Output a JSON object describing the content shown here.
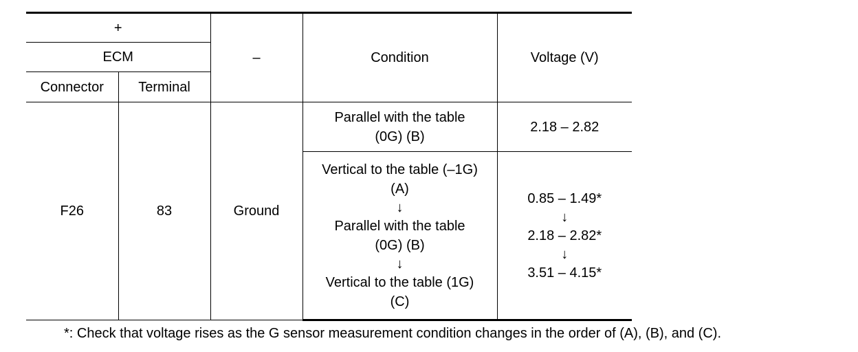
{
  "table": {
    "header": {
      "plus": "+",
      "ecm": "ECM",
      "connector": "Connector",
      "terminal": "Terminal",
      "minus": "–",
      "condition": "Condition",
      "voltage": "Voltage (V)"
    },
    "row": {
      "connector": "F26",
      "terminal": "83",
      "minus": "Ground",
      "condition_1": [
        "Parallel with the table",
        "(0G) (B)"
      ],
      "voltage_1": "2.18 – 2.82",
      "condition_2": [
        "Vertical to the table (–1G)",
        "(A)",
        "↓",
        "Parallel with the table",
        "(0G) (B)",
        "↓",
        "Vertical to the table (1G)",
        "(C)"
      ],
      "voltage_2": [
        "0.85 – 1.49*",
        "↓",
        "2.18 – 2.82*",
        "↓",
        "3.51 – 4.15*"
      ]
    }
  },
  "footnote": "*: Check that voltage rises as the G sensor measurement condition changes in the order of (A), (B), and (C)."
}
